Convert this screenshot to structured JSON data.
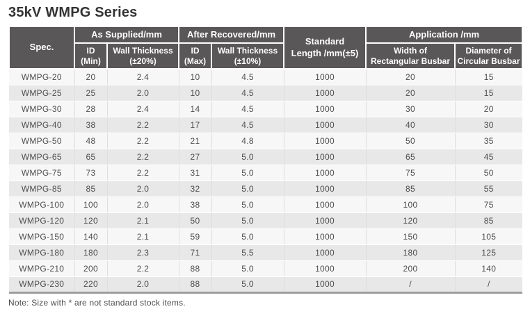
{
  "title": "35kV WMPG Series",
  "note": "Note: Size with * are not standard stock items.",
  "colors": {
    "header_bg": "#595757",
    "header_text": "#ffffff",
    "row_odd": "#f7f7f7",
    "row_even": "#e8e8e8",
    "bottom_border": "#9e9e9e",
    "body_text": "#4d4d4d",
    "title_text": "#333333"
  },
  "table": {
    "header": {
      "spec": "Spec.",
      "as_supplied": "As Supplied/mm",
      "after_recovered": "After Recovered/mm",
      "standard_length": "Standard\nLength /mm(±5)",
      "application": "Application /mm",
      "id_min": "ID\n(Min)",
      "wall_20": "Wall Thickness\n(±20%)",
      "id_max": "ID\n(Max)",
      "wall_10": "Wall Thickness\n(±10%)",
      "width_rect": "Width of\nRectangular Busbar",
      "diameter_circ": "Diameter of\nCircular Busbar"
    },
    "rows": [
      [
        "WMPG-20",
        "20",
        "2.4",
        "10",
        "4.5",
        "1000",
        "20",
        "15"
      ],
      [
        "WMPG-25",
        "25",
        "2.0",
        "10",
        "4.5",
        "1000",
        "20",
        "15"
      ],
      [
        "WMPG-30",
        "28",
        "2.4",
        "14",
        "4.5",
        "1000",
        "30",
        "20"
      ],
      [
        "WMPG-40",
        "38",
        "2.2",
        "17",
        "4.5",
        "1000",
        "40",
        "30"
      ],
      [
        "WMPG-50",
        "48",
        "2.2",
        "21",
        "4.8",
        "1000",
        "50",
        "35"
      ],
      [
        "WMPG-65",
        "65",
        "2.2",
        "27",
        "5.0",
        "1000",
        "65",
        "45"
      ],
      [
        "WMPG-75",
        "73",
        "2.2",
        "31",
        "5.0",
        "1000",
        "75",
        "50"
      ],
      [
        "WMPG-85",
        "85",
        "2.0",
        "32",
        "5.0",
        "1000",
        "85",
        "55"
      ],
      [
        "WMPG-100",
        "100",
        "2.0",
        "38",
        "5.0",
        "1000",
        "100",
        "75"
      ],
      [
        "WMPG-120",
        "120",
        "2.1",
        "50",
        "5.0",
        "1000",
        "120",
        "85"
      ],
      [
        "WMPG-150",
        "140",
        "2.1",
        "59",
        "5.0",
        "1000",
        "150",
        "105"
      ],
      [
        "WMPG-180",
        "180",
        "2.3",
        "71",
        "5.5",
        "1000",
        "180",
        "125"
      ],
      [
        "WMPG-210",
        "200",
        "2.2",
        "88",
        "5.0",
        "1000",
        "200",
        "140"
      ],
      [
        "WMPG-230",
        "220",
        "2.0",
        "88",
        "5.0",
        "1000",
        "/",
        "/"
      ]
    ]
  }
}
